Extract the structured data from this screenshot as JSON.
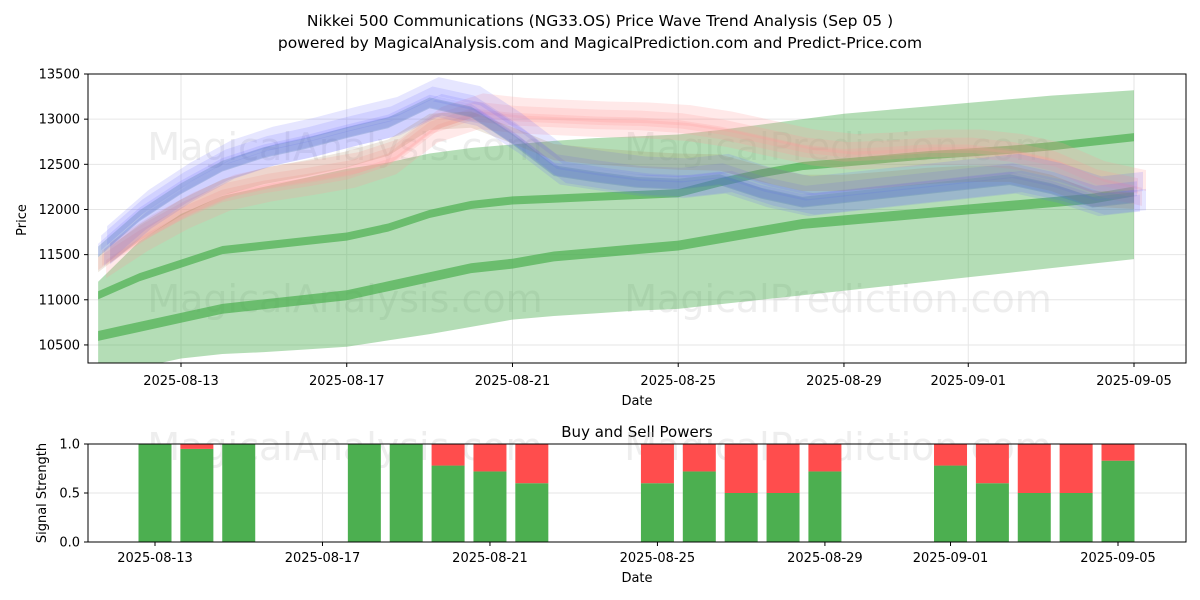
{
  "title_line1": "Nikkei 500 Communications (NG33.OS) Price Wave Trend Analysis (Sep 05 )",
  "title_line2": "powered by MagicalAnalysis.com and MagicalPrediction.com and Predict-Price.com",
  "watermarks": [
    "MagicalAnalysis.com",
    "MagicalPrediction.com"
  ],
  "colors": {
    "buy": "#4caf50",
    "sell": "#ff4d4d",
    "green_band": "#4caf50",
    "blue_band": "#6666ff",
    "red_band": "#ff9999",
    "grid": "#e6e6e6"
  },
  "chart_data": [
    {
      "type": "area",
      "name": "price-wave",
      "xlabel": "Date",
      "ylabel": "Price",
      "ylim": [
        10300,
        13500
      ],
      "x_ticks": [
        "2025-08-13",
        "2025-08-17",
        "2025-08-21",
        "2025-08-25",
        "2025-08-29",
        "2025-09-01",
        "2025-09-05"
      ],
      "x_tick_day_index": [
        2,
        6,
        10,
        14,
        18,
        21,
        25
      ],
      "y_ticks": [
        10500,
        11000,
        11500,
        12000,
        12500,
        13000,
        13500
      ],
      "x": [
        0,
        1,
        2,
        3,
        4,
        5,
        6,
        7,
        8,
        9,
        10,
        11,
        12,
        13,
        14,
        15,
        16,
        17,
        18,
        19,
        20,
        21,
        22,
        23,
        24,
        25
      ],
      "series": [
        {
          "name": "blue-wave",
          "values": [
            11550,
            11950,
            12250,
            12500,
            12650,
            12750,
            12870,
            12980,
            13200,
            13100,
            12800,
            12450,
            12380,
            12320,
            12300,
            12350,
            12200,
            12100,
            12150,
            12200,
            12250,
            12300,
            12350,
            12250,
            12100,
            12150
          ]
        },
        {
          "name": "red-wave",
          "values": [
            11400,
            11700,
            11950,
            12150,
            12250,
            12320,
            12400,
            12550,
            12900,
            13050,
            13000,
            12980,
            12960,
            12950,
            12920,
            12850,
            12750,
            12650,
            12600,
            12620,
            12650,
            12650,
            12600,
            12500,
            12300,
            12200
          ]
        },
        {
          "name": "green-upper-band",
          "values": [
            11200,
            11650,
            11950,
            12150,
            12250,
            12350,
            12450,
            12520,
            12620,
            12680,
            12720,
            12760,
            12790,
            12810,
            12830,
            12880,
            12940,
            13000,
            13060,
            13100,
            13140,
            13180,
            13220,
            13260,
            13290,
            13320
          ]
        },
        {
          "name": "green-mid-line-1",
          "values": [
            11050,
            11250,
            11400,
            11550,
            11600,
            11650,
            11700,
            11800,
            11950,
            12050,
            12100,
            12120,
            12140,
            12160,
            12180,
            12300,
            12400,
            12480,
            12520,
            12560,
            12600,
            12630,
            12660,
            12700,
            12750,
            12800
          ]
        },
        {
          "name": "green-mid-line-2",
          "values": [
            10600,
            10700,
            10800,
            10900,
            10950,
            11000,
            11050,
            11150,
            11250,
            11350,
            11400,
            11480,
            11520,
            11560,
            11600,
            11680,
            11760,
            11840,
            11880,
            11920,
            11960,
            12000,
            12040,
            12080,
            12120,
            12200
          ]
        },
        {
          "name": "green-lower-band",
          "values": [
            10100,
            10250,
            10350,
            10400,
            10420,
            10450,
            10480,
            10550,
            10620,
            10700,
            10780,
            10820,
            10850,
            10880,
            10900,
            10950,
            11000,
            11050,
            11100,
            11150,
            11200,
            11250,
            11300,
            11350,
            11400,
            11450
          ]
        }
      ]
    },
    {
      "type": "bar",
      "name": "buy-sell-powers",
      "title": "Buy and Sell Powers",
      "xlabel": "Date",
      "ylabel": "Signal Strength",
      "ylim": [
        0,
        1
      ],
      "x_ticks": [
        "2025-08-13",
        "2025-08-17",
        "2025-08-21",
        "2025-08-25",
        "2025-08-29",
        "2025-09-01",
        "2025-09-05"
      ],
      "x_tick_day_index": [
        2,
        6,
        10,
        14,
        18,
        21,
        25
      ],
      "y_ticks": [
        "0.0",
        "0.5",
        "1.0"
      ],
      "days": [
        2,
        3,
        4,
        7,
        8,
        9,
        10,
        11,
        14,
        15,
        16,
        17,
        18,
        21,
        22,
        23,
        24,
        25
      ],
      "buy": [
        1.0,
        0.95,
        1.0,
        1.0,
        1.0,
        0.78,
        0.72,
        0.6,
        0.6,
        0.72,
        0.5,
        0.5,
        0.72,
        0.78,
        0.6,
        0.5,
        0.5,
        0.83
      ],
      "sell": [
        0.0,
        0.05,
        0.0,
        0.0,
        0.0,
        0.22,
        0.28,
        0.4,
        0.4,
        0.28,
        0.5,
        0.5,
        0.28,
        0.22,
        0.4,
        0.5,
        0.5,
        0.17
      ]
    }
  ]
}
